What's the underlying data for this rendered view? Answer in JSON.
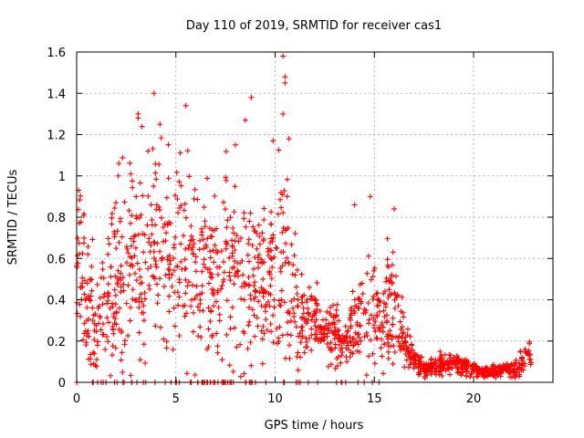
{
  "chart_data": {
    "type": "scatter",
    "title": "Day 110 of 2019, SRMTID for receiver cas1",
    "xlabel": "GPS time / hours",
    "ylabel": "SRMTID / TECUs",
    "xlim": [
      0,
      24
    ],
    "ylim": [
      0,
      1.6
    ],
    "xticks": [
      0,
      5,
      10,
      15,
      20
    ],
    "xtick_labels": [
      "0",
      "5",
      "10",
      "15",
      "20"
    ],
    "yticks": [
      0,
      0.2,
      0.4,
      0.6,
      0.8,
      1.0,
      1.2,
      1.4,
      1.6
    ],
    "ytick_labels": [
      "0",
      "0.2",
      "0.4",
      "0.6",
      "0.8",
      "1",
      "1.2",
      "1.4",
      "1.6"
    ],
    "grid": true,
    "marker": "+",
    "series": [
      {
        "name": "SRMTID",
        "color": "#ff0000",
        "envelope": [
          {
            "x": 0.0,
            "y": 0.55
          },
          {
            "x": 0.5,
            "y": 0.45
          },
          {
            "x": 1.0,
            "y": 0.3
          },
          {
            "x": 1.5,
            "y": 0.42
          },
          {
            "x": 2.0,
            "y": 0.5
          },
          {
            "x": 2.5,
            "y": 0.55
          },
          {
            "x": 3.0,
            "y": 0.58
          },
          {
            "x": 3.5,
            "y": 0.62
          },
          {
            "x": 4.0,
            "y": 0.65
          },
          {
            "x": 4.5,
            "y": 0.62
          },
          {
            "x": 5.0,
            "y": 0.6
          },
          {
            "x": 5.5,
            "y": 0.55
          },
          {
            "x": 6.0,
            "y": 0.55
          },
          {
            "x": 6.5,
            "y": 0.52
          },
          {
            "x": 7.0,
            "y": 0.55
          },
          {
            "x": 7.5,
            "y": 0.58
          },
          {
            "x": 8.0,
            "y": 0.55
          },
          {
            "x": 8.5,
            "y": 0.52
          },
          {
            "x": 9.0,
            "y": 0.48
          },
          {
            "x": 9.5,
            "y": 0.5
          },
          {
            "x": 10.0,
            "y": 0.58
          },
          {
            "x": 10.5,
            "y": 0.55
          },
          {
            "x": 11.0,
            "y": 0.38
          },
          {
            "x": 11.5,
            "y": 0.3
          },
          {
            "x": 12.0,
            "y": 0.28
          },
          {
            "x": 12.5,
            "y": 0.25
          },
          {
            "x": 13.0,
            "y": 0.22
          },
          {
            "x": 13.5,
            "y": 0.2
          },
          {
            "x": 14.0,
            "y": 0.3
          },
          {
            "x": 14.5,
            "y": 0.35
          },
          {
            "x": 15.0,
            "y": 0.32
          },
          {
            "x": 15.5,
            "y": 0.38
          },
          {
            "x": 16.0,
            "y": 0.36
          },
          {
            "x": 16.5,
            "y": 0.22
          },
          {
            "x": 17.0,
            "y": 0.1
          },
          {
            "x": 17.5,
            "y": 0.07
          },
          {
            "x": 18.0,
            "y": 0.07
          },
          {
            "x": 18.5,
            "y": 0.09
          },
          {
            "x": 19.0,
            "y": 0.1
          },
          {
            "x": 19.5,
            "y": 0.08
          },
          {
            "x": 20.0,
            "y": 0.06
          },
          {
            "x": 20.5,
            "y": 0.05
          },
          {
            "x": 21.0,
            "y": 0.05
          },
          {
            "x": 21.5,
            "y": 0.06
          },
          {
            "x": 22.0,
            "y": 0.07
          },
          {
            "x": 22.5,
            "y": 0.1
          },
          {
            "x": 22.9,
            "y": 0.13
          }
        ],
        "notable_points": [
          {
            "x": 10.4,
            "y": 1.58
          },
          {
            "x": 10.5,
            "y": 1.45
          },
          {
            "x": 10.5,
            "y": 1.48
          },
          {
            "x": 3.9,
            "y": 1.4
          },
          {
            "x": 5.5,
            "y": 1.34
          },
          {
            "x": 8.8,
            "y": 1.38
          },
          {
            "x": 3.1,
            "y": 1.3
          },
          {
            "x": 3.1,
            "y": 1.28
          },
          {
            "x": 4.2,
            "y": 1.25
          },
          {
            "x": 8.5,
            "y": 1.27
          },
          {
            "x": 10.4,
            "y": 1.3
          },
          {
            "x": 10.7,
            "y": 1.18
          },
          {
            "x": 3.6,
            "y": 1.12
          },
          {
            "x": 9.9,
            "y": 1.17
          },
          {
            "x": 8.0,
            "y": 1.15
          },
          {
            "x": 2.1,
            "y": 1.0
          },
          {
            "x": 14.0,
            "y": 0.86
          },
          {
            "x": 14.8,
            "y": 0.9
          },
          {
            "x": 16.0,
            "y": 0.84
          },
          {
            "x": 0.1,
            "y": 0.93
          }
        ]
      }
    ]
  }
}
